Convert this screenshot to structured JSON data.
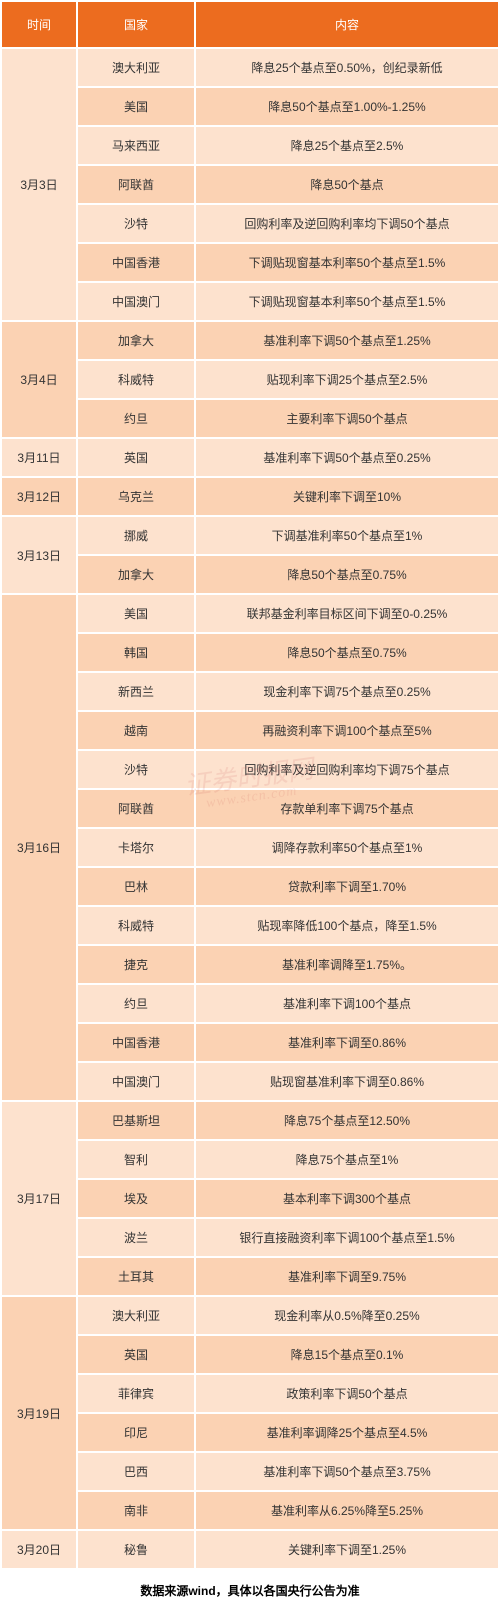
{
  "colors": {
    "header_bg": "#ec6c1f",
    "row_alt1": "#fde2ce",
    "row_alt2": "#fbd2b3",
    "text": "#333333"
  },
  "headers": {
    "date": "时间",
    "country": "国家",
    "content": "内容"
  },
  "groups": [
    {
      "date": "3月3日",
      "rows": [
        {
          "country": "澳大利亚",
          "content": "降息25个基点至0.50%，创纪录新低"
        },
        {
          "country": "美国",
          "content": "降息50个基点至1.00%-1.25%"
        },
        {
          "country": "马来西亚",
          "content": "降息25个基点至2.5%"
        },
        {
          "country": "阿联酋",
          "content": "降息50个基点"
        },
        {
          "country": "沙特",
          "content": "回购利率及逆回购利率均下调50个基点"
        },
        {
          "country": "中国香港",
          "content": "下调贴现窗基本利率50个基点至1.5%"
        },
        {
          "country": "中国澳门",
          "content": "下调贴现窗基本利率50个基点至1.5%"
        }
      ]
    },
    {
      "date": "3月4日",
      "rows": [
        {
          "country": "加拿大",
          "content": "基准利率下调50个基点至1.25%"
        },
        {
          "country": "科威特",
          "content": "贴现利率下调25个基点至2.5%"
        },
        {
          "country": "约旦",
          "content": "主要利率下调50个基点"
        }
      ]
    },
    {
      "date": "3月11日",
      "rows": [
        {
          "country": "英国",
          "content": "基准利率下调50个基点至0.25%"
        }
      ]
    },
    {
      "date": "3月12日",
      "rows": [
        {
          "country": "乌克兰",
          "content": "关键利率下调至10%"
        }
      ]
    },
    {
      "date": "3月13日",
      "rows": [
        {
          "country": "挪威",
          "content": "下调基准利率50个基点至1%"
        },
        {
          "country": "加拿大",
          "content": "降息50个基点至0.75%"
        }
      ]
    },
    {
      "date": "3月16日",
      "rows": [
        {
          "country": "美国",
          "content": "联邦基金利率目标区间下调至0-0.25%"
        },
        {
          "country": "韩国",
          "content": "降息50个基点至0.75%"
        },
        {
          "country": "新西兰",
          "content": "现金利率下调75个基点至0.25%"
        },
        {
          "country": "越南",
          "content": "再融资利率下调100个基点至5%"
        },
        {
          "country": "沙特",
          "content": "回购利率及逆回购利率均下调75个基点"
        },
        {
          "country": "阿联酋",
          "content": "存款单利率下调75个基点"
        },
        {
          "country": "卡塔尔",
          "content": "调降存款利率50个基点至1%"
        },
        {
          "country": "巴林",
          "content": "贷款利率下调至1.70%"
        },
        {
          "country": "科威特",
          "content": "贴现率降低100个基点，降至1.5%"
        },
        {
          "country": "捷克",
          "content": "基准利率调降至1.75%。"
        },
        {
          "country": "约旦",
          "content": "基准利率下调100个基点"
        },
        {
          "country": "中国香港",
          "content": "基准利率下调至0.86%"
        },
        {
          "country": "中国澳门",
          "content": "贴现窗基准利率下调至0.86%"
        }
      ]
    },
    {
      "date": "3月17日",
      "rows": [
        {
          "country": "巴基斯坦",
          "content": "降息75个基点至12.50%"
        },
        {
          "country": "智利",
          "content": "降息75个基点至1%"
        },
        {
          "country": "埃及",
          "content": "基本利率下调300个基点"
        },
        {
          "country": "波兰",
          "content": "银行直接融资利率下调100个基点至1.5%"
        },
        {
          "country": "土耳其",
          "content": "基准利率下调至9.75%"
        }
      ]
    },
    {
      "date": "3月19日",
      "rows": [
        {
          "country": "澳大利亚",
          "content": "现金利率从0.5%降至0.25%"
        },
        {
          "country": "英国",
          "content": "降息15个基点至0.1%"
        },
        {
          "country": "菲律宾",
          "content": "政策利率下调50个基点"
        },
        {
          "country": "印尼",
          "content": "基准利率调降25个基点至4.5%"
        },
        {
          "country": "巴西",
          "content": "基准利率下调50个基点至3.75%"
        },
        {
          "country": "南非",
          "content": "基准利率从6.25%降至5.25%"
        }
      ]
    },
    {
      "date": "3月20日",
      "rows": [
        {
          "country": "秘鲁",
          "content": "关键利率下调至1.25%"
        }
      ]
    }
  ],
  "footnote": "数据来源wind，具体以各国央行公告为准",
  "watermark": {
    "top": "证券时报网",
    "bottom": "www.stcn.com"
  }
}
